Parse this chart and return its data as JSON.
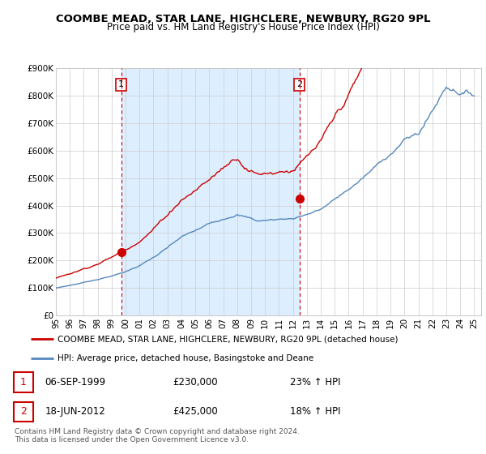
{
  "title": "COOMBE MEAD, STAR LANE, HIGHCLERE, NEWBURY, RG20 9PL",
  "subtitle": "Price paid vs. HM Land Registry's House Price Index (HPI)",
  "ylabel_ticks": [
    "£0",
    "£100K",
    "£200K",
    "£300K",
    "£400K",
    "£500K",
    "£600K",
    "£700K",
    "£800K",
    "£900K"
  ],
  "ylim": [
    0,
    900000
  ],
  "xlim_start": 1995.0,
  "xlim_end": 2025.5,
  "sale1_date": 1999.68,
  "sale1_price": 230000,
  "sale1_label": "1",
  "sale2_date": 2012.46,
  "sale2_price": 425000,
  "sale2_label": "2",
  "red_line_color": "#cc0000",
  "blue_line_color": "#5588bb",
  "sale_marker_color": "#cc0000",
  "vline_color": "#cc0000",
  "grid_color": "#cccccc",
  "shade_color": "#ddeeff",
  "background_color": "#ffffff",
  "legend_label_red": "COOMBE MEAD, STAR LANE, HIGHCLERE, NEWBURY, RG20 9PL (detached house)",
  "legend_label_blue": "HPI: Average price, detached house, Basingstoke and Deane",
  "table_row1": [
    "1",
    "06-SEP-1999",
    "£230,000",
    "23% ↑ HPI"
  ],
  "table_row2": [
    "2",
    "18-JUN-2012",
    "£425,000",
    "18% ↑ HPI"
  ],
  "footer": "Contains HM Land Registry data © Crown copyright and database right 2024.\nThis data is licensed under the Open Government Licence v3.0.",
  "title_fontsize": 9.5,
  "subtitle_fontsize": 8.5,
  "tick_fontsize": 7.5,
  "legend_fontsize": 8
}
